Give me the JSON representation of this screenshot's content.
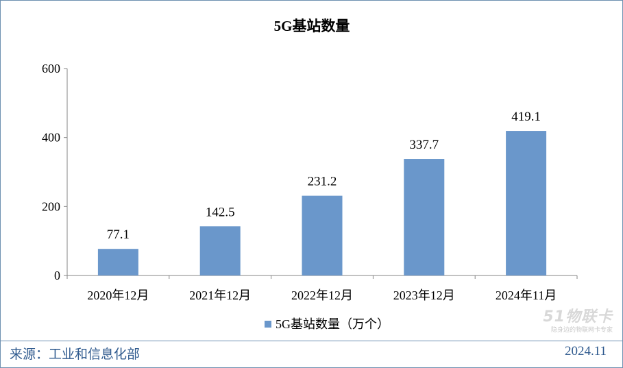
{
  "chart_data": {
    "type": "bar",
    "title": "5G基站数量",
    "categories": [
      "2020年12月",
      "2021年12月",
      "2022年12月",
      "2023年12月",
      "2024年11月"
    ],
    "series": [
      {
        "name": "5G基站数量（万个）",
        "values": [
          77.1,
          142.5,
          231.2,
          337.7,
          419.1
        ]
      }
    ],
    "data_labels": [
      "77.1",
      "142.5",
      "231.2",
      "337.7",
      "419.1"
    ],
    "yticks": [
      "0",
      "200",
      "400",
      "600"
    ],
    "ytick_values": [
      0,
      200,
      400,
      600
    ],
    "ylim": [
      0,
      600
    ],
    "xlabel": "",
    "ylabel": "",
    "grid": false,
    "legend_position": "bottom",
    "bar_color": "#6a97cb"
  },
  "footer": {
    "source": "来源：工业和信息化部",
    "date": "2024.11"
  },
  "watermark": {
    "logo": "51物联卡",
    "subtitle": "隐身边的物联网卡专家"
  }
}
